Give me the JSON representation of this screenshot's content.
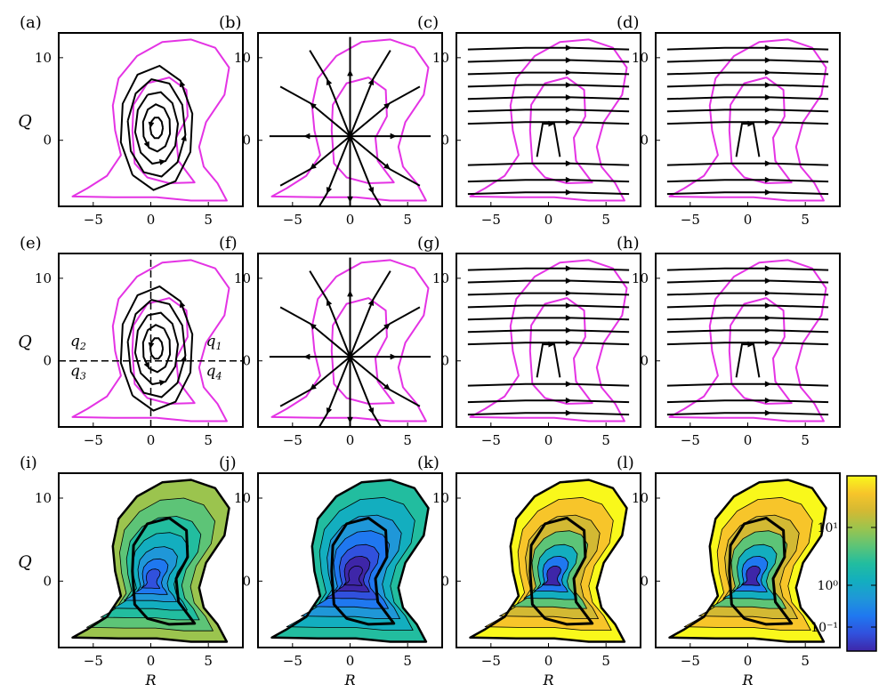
{
  "figure": {
    "panel_labels": [
      "(a)",
      "(b)",
      "(c)",
      "(d)",
      "(e)",
      "(f)",
      "(g)",
      "(h)",
      "(i)",
      "(j)",
      "(k)",
      "(l)"
    ],
    "ylabel": "Q",
    "xlabel": "R",
    "x_ticks": [
      "−5",
      "0",
      "5"
    ],
    "y_ticks": [
      "10",
      "0"
    ],
    "quadrant_labels": [
      "q1",
      "q2",
      "q3",
      "q4"
    ],
    "colorbar_ticks": [
      "10¹",
      "10⁰",
      "10⁻¹"
    ]
  },
  "chart_data": [
    {
      "panel": "a",
      "type": "streamline",
      "flow": "spiral",
      "xlim": [
        -8,
        8
      ],
      "ylim": [
        -8,
        13
      ]
    },
    {
      "panel": "b",
      "type": "streamline",
      "flow": "radial",
      "xlim": [
        -8,
        8
      ],
      "ylim": [
        -8,
        13
      ]
    },
    {
      "panel": "c",
      "type": "streamline",
      "flow": "horizontal",
      "xlim": [
        -8,
        8
      ],
      "ylim": [
        -8,
        13
      ]
    },
    {
      "panel": "d",
      "type": "streamline",
      "flow": "horizontal",
      "xlim": [
        -8,
        8
      ],
      "ylim": [
        -8,
        13
      ]
    },
    {
      "panel": "e",
      "type": "streamline",
      "flow": "spiral",
      "quadrant_lines": true,
      "xlim": [
        -8,
        8
      ],
      "ylim": [
        -8,
        13
      ]
    },
    {
      "panel": "f",
      "type": "streamline",
      "flow": "radial",
      "xlim": [
        -8,
        8
      ],
      "ylim": [
        -8,
        13
      ]
    },
    {
      "panel": "g",
      "type": "streamline",
      "flow": "horizontal",
      "xlim": [
        -8,
        8
      ],
      "ylim": [
        -8,
        13
      ]
    },
    {
      "panel": "h",
      "type": "streamline",
      "flow": "horizontal",
      "xlim": [
        -8,
        8
      ],
      "ylim": [
        -8,
        13
      ]
    },
    {
      "panel": "i",
      "type": "heatmap",
      "colormap": "parula",
      "xlim": [
        -8,
        8
      ],
      "ylim": [
        -8,
        13
      ]
    },
    {
      "panel": "j",
      "type": "heatmap",
      "colormap": "parula",
      "xlim": [
        -8,
        8
      ],
      "ylim": [
        -8,
        13
      ]
    },
    {
      "panel": "k",
      "type": "heatmap",
      "colormap": "parula",
      "xlim": [
        -8,
        8
      ],
      "ylim": [
        -8,
        13
      ]
    },
    {
      "panel": "l",
      "type": "heatmap",
      "colormap": "parula",
      "xlim": [
        -8,
        8
      ],
      "ylim": [
        -8,
        13
      ],
      "colorbar": {
        "scale": "log",
        "ticks": [
          10,
          1,
          0.1
        ]
      }
    }
  ],
  "colors": {
    "boundary": "#e433e4",
    "stream": "#000000",
    "frame": "#000000"
  }
}
